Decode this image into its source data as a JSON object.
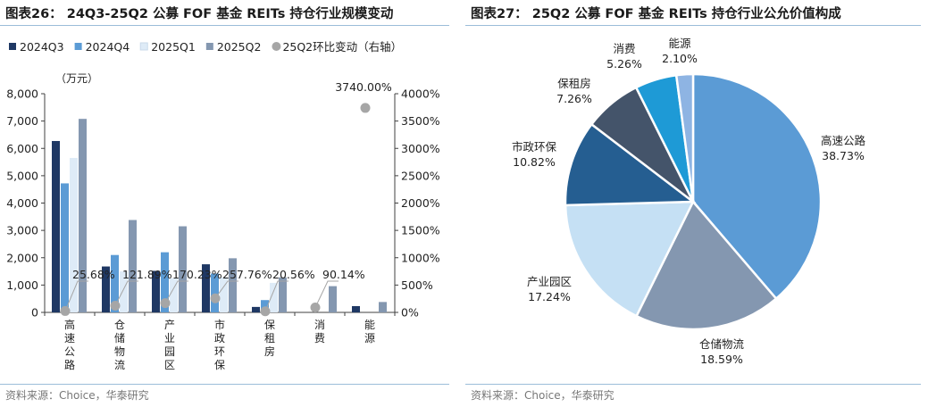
{
  "chart_data": [
    {
      "type": "bar",
      "title": "图表26：  24Q3-25Q2 公募 FOF 基金 REITs 持仓行业规模变动",
      "ylabel": "（万元）",
      "ylim": [
        0,
        8000
      ],
      "yticks": [
        "0",
        "1,000",
        "2,000",
        "3,000",
        "4,000",
        "5,000",
        "6,000",
        "7,000",
        "8,000"
      ],
      "y2lim": [
        0,
        4000
      ],
      "y2ticks": [
        "0%",
        "500%",
        "1000%",
        "1500%",
        "2000%",
        "2500%",
        "3000%",
        "3500%",
        "4000%"
      ],
      "categories": [
        "高速公路",
        "仓储物流",
        "产业园区",
        "市政环保",
        "保租房",
        "消费",
        "能源"
      ],
      "series": [
        {
          "name": "2024Q3",
          "type": "bar",
          "color": "#1f3864",
          "values": [
            6270,
            1680,
            1520,
            1760,
            200,
            0,
            230
          ]
        },
        {
          "name": "2024Q4",
          "type": "bar",
          "color": "#5b9bd5",
          "values": [
            4720,
            2100,
            2200,
            1420,
            450,
            0,
            0
          ]
        },
        {
          "name": "2025Q1",
          "type": "bar",
          "color": "#deebf7",
          "values": [
            5650,
            1500,
            1250,
            1290,
            1080,
            0,
            0
          ]
        },
        {
          "name": "2025Q2",
          "type": "bar",
          "color": "#8497b0",
          "values": [
            7080,
            3380,
            3150,
            1980,
            1280,
            960,
            380
          ]
        },
        {
          "name": "25Q2环比变动（右轴）",
          "type": "scatter",
          "axis": "right",
          "color": "#a6a6a6",
          "values": [
            25.68,
            121.89,
            170.23,
            257.76,
            20.56,
            90.14,
            3740.0
          ],
          "labels": [
            "25.68%",
            "121.89%",
            "170.23%",
            "257.76%",
            "20.56%",
            "90.14%",
            "3740.00%"
          ]
        }
      ],
      "legend_position": "top"
    },
    {
      "type": "pie",
      "title": "图表27：  25Q2 公募 FOF 基金 REITs 持仓行业公允价值构成",
      "slices": [
        {
          "label": "高速公路",
          "value": 38.73,
          "text": "38.73%",
          "color": "#5b9bd5"
        },
        {
          "label": "仓储物流",
          "value": 18.59,
          "text": "18.59%",
          "color": "#8497b0"
        },
        {
          "label": "产业园区",
          "value": 17.24,
          "text": "17.24%",
          "color": "#c5e0f4"
        },
        {
          "label": "市政环保",
          "value": 10.82,
          "text": "10.82%",
          "color": "#255e91"
        },
        {
          "label": "保租房",
          "value": 7.26,
          "text": "7.26%",
          "color": "#44546a"
        },
        {
          "label": "消费",
          "value": 5.26,
          "text": "5.26%",
          "color": "#1e9ad6"
        },
        {
          "label": "能源",
          "value": 2.1,
          "text": "2.10%",
          "color": "#8eb4e3"
        }
      ]
    }
  ],
  "source_left": "资料来源：Choice，华泰研究",
  "source_right": "资料来源：Choice，华泰研究",
  "colors": {
    "rule": "#9bbdd9",
    "axis": "#404040",
    "connector": "#a6a6a6"
  }
}
